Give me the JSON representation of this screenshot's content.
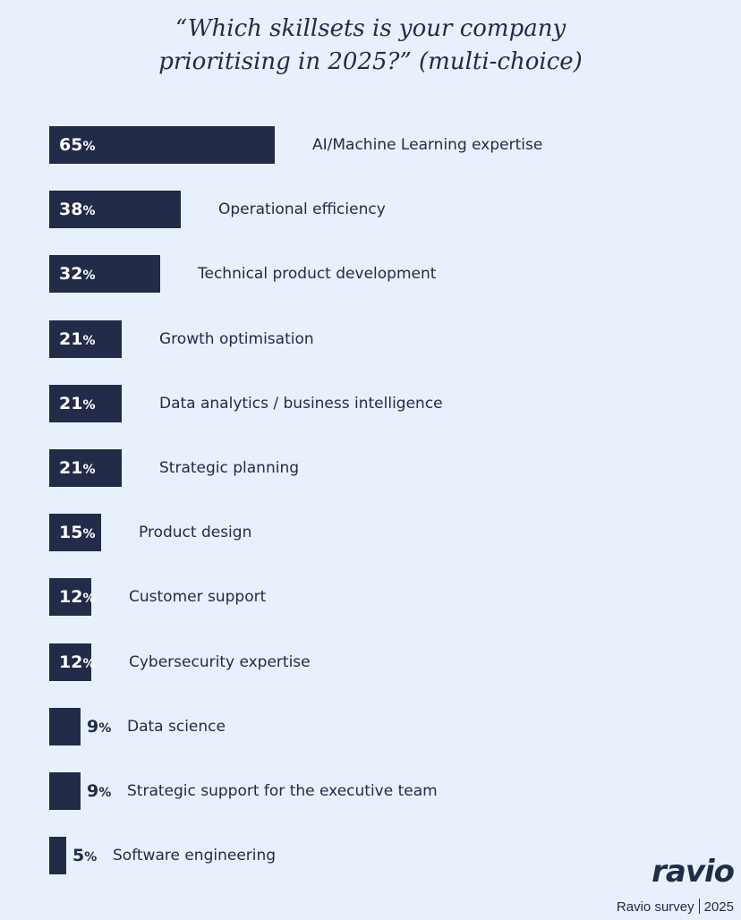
{
  "title_line1": "“Which skillsets is your company",
  "title_line2": "prioritising in 2025?”  (multi-choice)",
  "brand": "ravio",
  "source_left": "Ravio survey",
  "source_right": "2025",
  "colors": {
    "bar": "#222b47",
    "background": "#e8f1fb",
    "pct_inside": "#ffffff",
    "pct_outside": "#222b47"
  },
  "chart_data": {
    "type": "bar",
    "orientation": "horizontal",
    "categories": [
      "AI/Machine Learning expertise",
      "Operational efficiency",
      "Technical product development",
      "Growth optimisation",
      "Data analytics / business intelligence",
      "Strategic planning",
      "Product design",
      "Customer support",
      "Cybersecurity expertise",
      "Data science",
      "Strategic support for the executive team",
      "Software engineering"
    ],
    "values": [
      65,
      38,
      32,
      21,
      21,
      21,
      15,
      12,
      12,
      9,
      9,
      5
    ],
    "value_suffix": "%",
    "grid": false,
    "legend": "none"
  }
}
